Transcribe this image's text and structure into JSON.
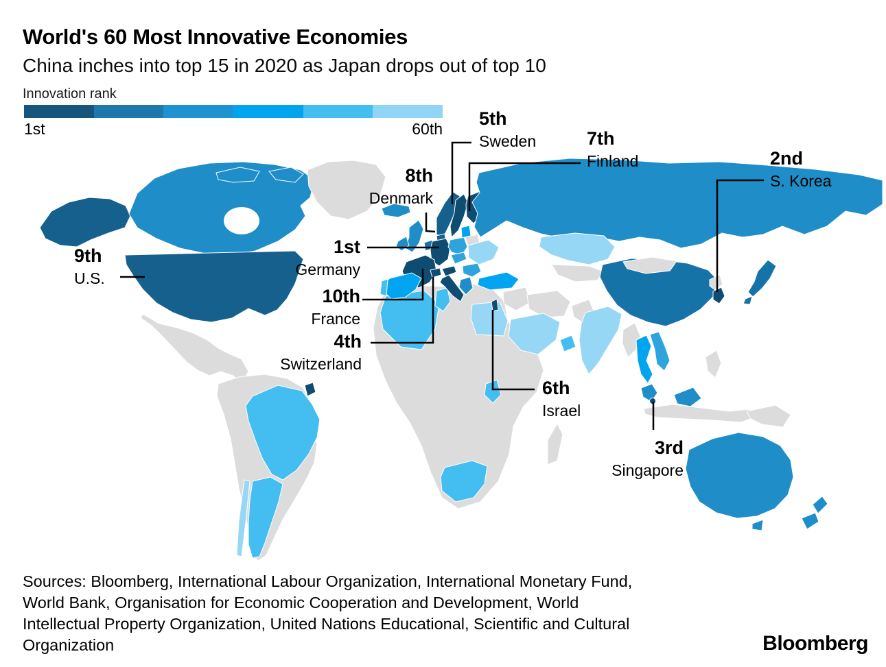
{
  "header": {
    "title": "World's 60 Most Innovative Economies",
    "subtitle": "China inches into top 15 in 2020 as Japan drops out of top 10"
  },
  "legend": {
    "label": "Innovation rank",
    "min_label": "1st",
    "max_label": "60th",
    "colors": [
      "#16567C",
      "#1E78AB",
      "#1F93D2",
      "#00A4EF",
      "#44BDF0",
      "#90D5F5"
    ]
  },
  "chart_data": {
    "type": "heatmap",
    "subtype": "choropleth-world-map",
    "title": "World's 60 Most Innovative Economies",
    "subtitle": "China inches into top 15 in 2020 as Japan drops out of top 10",
    "legend": {
      "label": "Innovation rank",
      "scale_min_label": "1st",
      "scale_max_label": "60th",
      "position": "top-left"
    },
    "annotated_rankings": [
      {
        "rank": 1,
        "rank_label": "1st",
        "country": "Germany"
      },
      {
        "rank": 2,
        "rank_label": "2nd",
        "country": "S. Korea"
      },
      {
        "rank": 3,
        "rank_label": "3rd",
        "country": "Singapore"
      },
      {
        "rank": 4,
        "rank_label": "4th",
        "country": "Switzerland"
      },
      {
        "rank": 5,
        "rank_label": "5th",
        "country": "Sweden"
      },
      {
        "rank": 6,
        "rank_label": "6th",
        "country": "Israel"
      },
      {
        "rank": 7,
        "rank_label": "7th",
        "country": "Finland"
      },
      {
        "rank": 8,
        "rank_label": "8th",
        "country": "Denmark"
      },
      {
        "rank": 9,
        "rank_label": "9th",
        "country": "U.S."
      },
      {
        "rank": 10,
        "rank_label": "10th",
        "country": "France"
      }
    ],
    "shading_note": "Darker blue = higher innovation rank (closer to 1st); lighter blue = lower rank (closer to 60th); gray = not in top 60"
  },
  "map": {
    "palette": {
      "band1": "#0E4C72",
      "band2": "#15608C",
      "band3": "#1573A8",
      "band4": "#1F8DC8",
      "band5": "#2EA3DC",
      "band6": "#00A4EF",
      "band7": "#44BDF0",
      "band8": "#97D7F6",
      "gray": "#DCDCDC"
    },
    "countries": {
      "alaska": "band2",
      "canada": "band4",
      "arctic-islands": "band4",
      "greenland": "gray",
      "iceland": "band4",
      "us": "band2",
      "mexico-central-america": "gray",
      "south-america-other": "gray",
      "brazil": "band7",
      "argentina": "band7",
      "chile": "band8",
      "french-guiana": "band1",
      "africa-other": "gray",
      "madagascar": "gray",
      "algeria": "band7",
      "tunisia": "band7",
      "egypt": "band8",
      "south-africa": "band7",
      "kenya": "band7",
      "norway": "band2",
      "sweden": "band1",
      "finland": "band1",
      "denmark": "band2",
      "uk": "band4",
      "ireland": "band4",
      "netherlands-belgium": "band3",
      "germany": "band1",
      "france": "band1",
      "switzerland": "band1",
      "austria": "band1",
      "italy": "band1",
      "spain": "band6",
      "portugal": "band7",
      "poland": "band5",
      "czech-slovakia": "band5",
      "baltics": "band6",
      "belarus": "gray",
      "ukraine": "band8",
      "romania-bulgaria": "band5",
      "greece": "band4",
      "turkey": "band6",
      "russia": "band4",
      "kazakhstan": "band8",
      "central-asia": "gray",
      "china": "band3",
      "mongolia": "gray",
      "india": "band8",
      "pakistan": "gray",
      "myanmar": "gray",
      "thailand": "band6",
      "vietnam": "band5",
      "malaysia": "band4",
      "singapore": "band1",
      "indonesia": "gray",
      "papua": "gray",
      "philippines": "gray",
      "japan": "band3",
      "south-korea": "band1",
      "north-korea": "gray",
      "saudi-arabia": "band8",
      "uae-oman": "band7",
      "iran": "gray",
      "iraq-syria": "gray",
      "israel": "band1",
      "australia": "band4",
      "tasmania": "band4",
      "new-zealand": "band4"
    },
    "annotations": [
      {
        "rank": "1st",
        "country": "Germany"
      },
      {
        "rank": "2nd",
        "country": "S. Korea"
      },
      {
        "rank": "3rd",
        "country": "Singapore"
      },
      {
        "rank": "4th",
        "country": "Switzerland"
      },
      {
        "rank": "5th",
        "country": "Sweden"
      },
      {
        "rank": "6th",
        "country": "Israel"
      },
      {
        "rank": "7th",
        "country": "Finland"
      },
      {
        "rank": "8th",
        "country": "Denmark"
      },
      {
        "rank": "9th",
        "country": "U.S."
      },
      {
        "rank": "10th",
        "country": "France"
      }
    ]
  },
  "footer": {
    "sources_lines": [
      "Sources: Bloomberg, International Labour Organization, International Monetary Fund,",
      "World Bank, Organisation for Economic Cooperation and Development, World",
      "Intellectual Property Organization, United Nations Educational, Scientific and Cultural",
      "Organization"
    ],
    "logo": "Bloomberg"
  }
}
